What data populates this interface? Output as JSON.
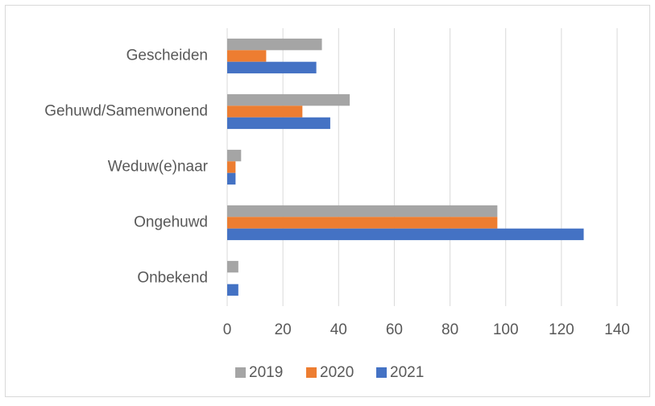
{
  "chart_data": {
    "type": "hbar",
    "categories": [
      "Gescheiden",
      "Gehuwd/Samenwonend",
      "Weduw(e)naar",
      "Ongehuwd",
      "Onbekend"
    ],
    "series": [
      {
        "name": "2019",
        "color": "#a5a5a5",
        "values": [
          34,
          44,
          5,
          97,
          4
        ]
      },
      {
        "name": "2020",
        "color": "#ed7d31",
        "values": [
          14,
          27,
          3,
          97,
          0
        ]
      },
      {
        "name": "2021",
        "color": "#4472c4",
        "values": [
          32,
          37,
          3,
          128,
          4
        ]
      }
    ],
    "xlim": [
      0,
      140
    ],
    "xticks": [
      0,
      20,
      40,
      60,
      80,
      100,
      120,
      140
    ],
    "grid": true,
    "legend": "bottom"
  }
}
